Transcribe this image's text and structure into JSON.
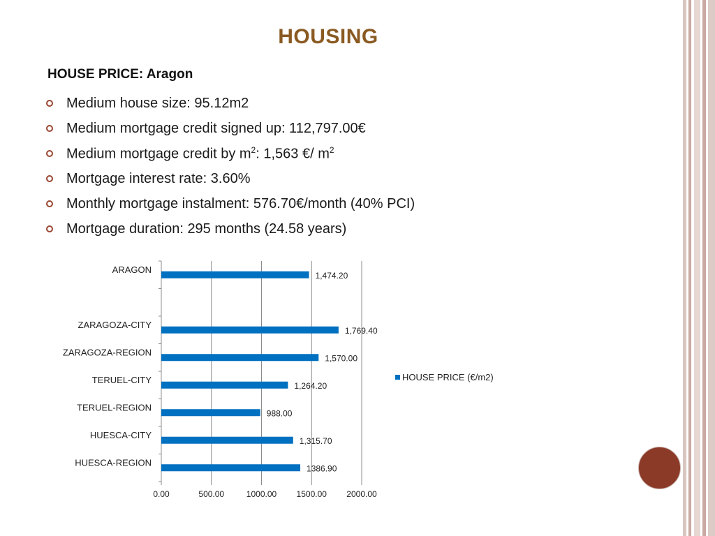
{
  "slide": {
    "title": "HOUSING",
    "subheading": "HOUSE PRICE: Aragon",
    "bullets": {
      "b1": "Medium house size: 95.12m2",
      "b2": "Medium mortgage credit signed up: 112,797.00€",
      "b3_a": "Medium mortgage credit by m",
      "b3_sup1": "2",
      "b3_b": ": 1,563 €/ m",
      "b3_sup2": "2",
      "b4": "Mortgage interest rate: 3.60%",
      "b5": "Monthly mortgage instalment: 576.70€/month (40% PCI)",
      "b6": "Mortgage duration:  295 months (24.58 years)"
    }
  },
  "colors": {
    "title": "#8a5a22",
    "bar": "#0070c0",
    "bullet_marker": "#9a4632",
    "accent_circle": "#8b3a28"
  },
  "chart_data": {
    "type": "bar",
    "orientation": "horizontal",
    "categories": [
      "ARAGON",
      "",
      "ZARAGOZA-CITY",
      "ZARAGOZA-REGION",
      "TERUEL-CITY",
      "TERUEL-REGION",
      "HUESCA-CITY",
      "HUESCA-REGION"
    ],
    "series": [
      {
        "name": "HOUSE PRICE (€/m2)",
        "values": [
          1474.2,
          null,
          1769.4,
          1570.0,
          1264.2,
          988.0,
          1315.7,
          1386.9
        ],
        "labels": [
          "1,474.20",
          "",
          "1,769.40",
          "1,570.00",
          "1,264.20",
          "988.00",
          "1,315.70",
          "1386.90"
        ]
      }
    ],
    "xlim": [
      0,
      2000
    ],
    "xticks": [
      "0.00",
      "500.00",
      "1000.00",
      "1500.00",
      "2000.00"
    ],
    "grid": true,
    "legend_position": "right"
  }
}
